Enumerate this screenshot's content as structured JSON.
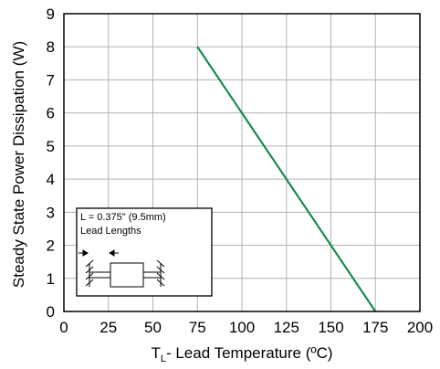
{
  "chart_data": {
    "type": "line",
    "title": "",
    "xlabel_main": "T",
    "xlabel_sub": "L",
    "xlabel_rest": "- Lead Temperature (ºC)",
    "ylabel": "Steady State Power Dissipation (W)",
    "xlim": [
      0,
      200
    ],
    "ylim": [
      0,
      9
    ],
    "xticks": [
      0,
      25,
      50,
      75,
      100,
      125,
      150,
      175,
      200
    ],
    "yticks": [
      0,
      1,
      2,
      3,
      4,
      5,
      6,
      7,
      8,
      9
    ],
    "grid": true,
    "series": [
      {
        "color": "#178c4a",
        "x": [
          75,
          175
        ],
        "y": [
          8,
          0
        ]
      }
    ],
    "inset": {
      "line1": "L = 0.375\" (9.5mm)",
      "line2": "Lead Lengths"
    }
  }
}
